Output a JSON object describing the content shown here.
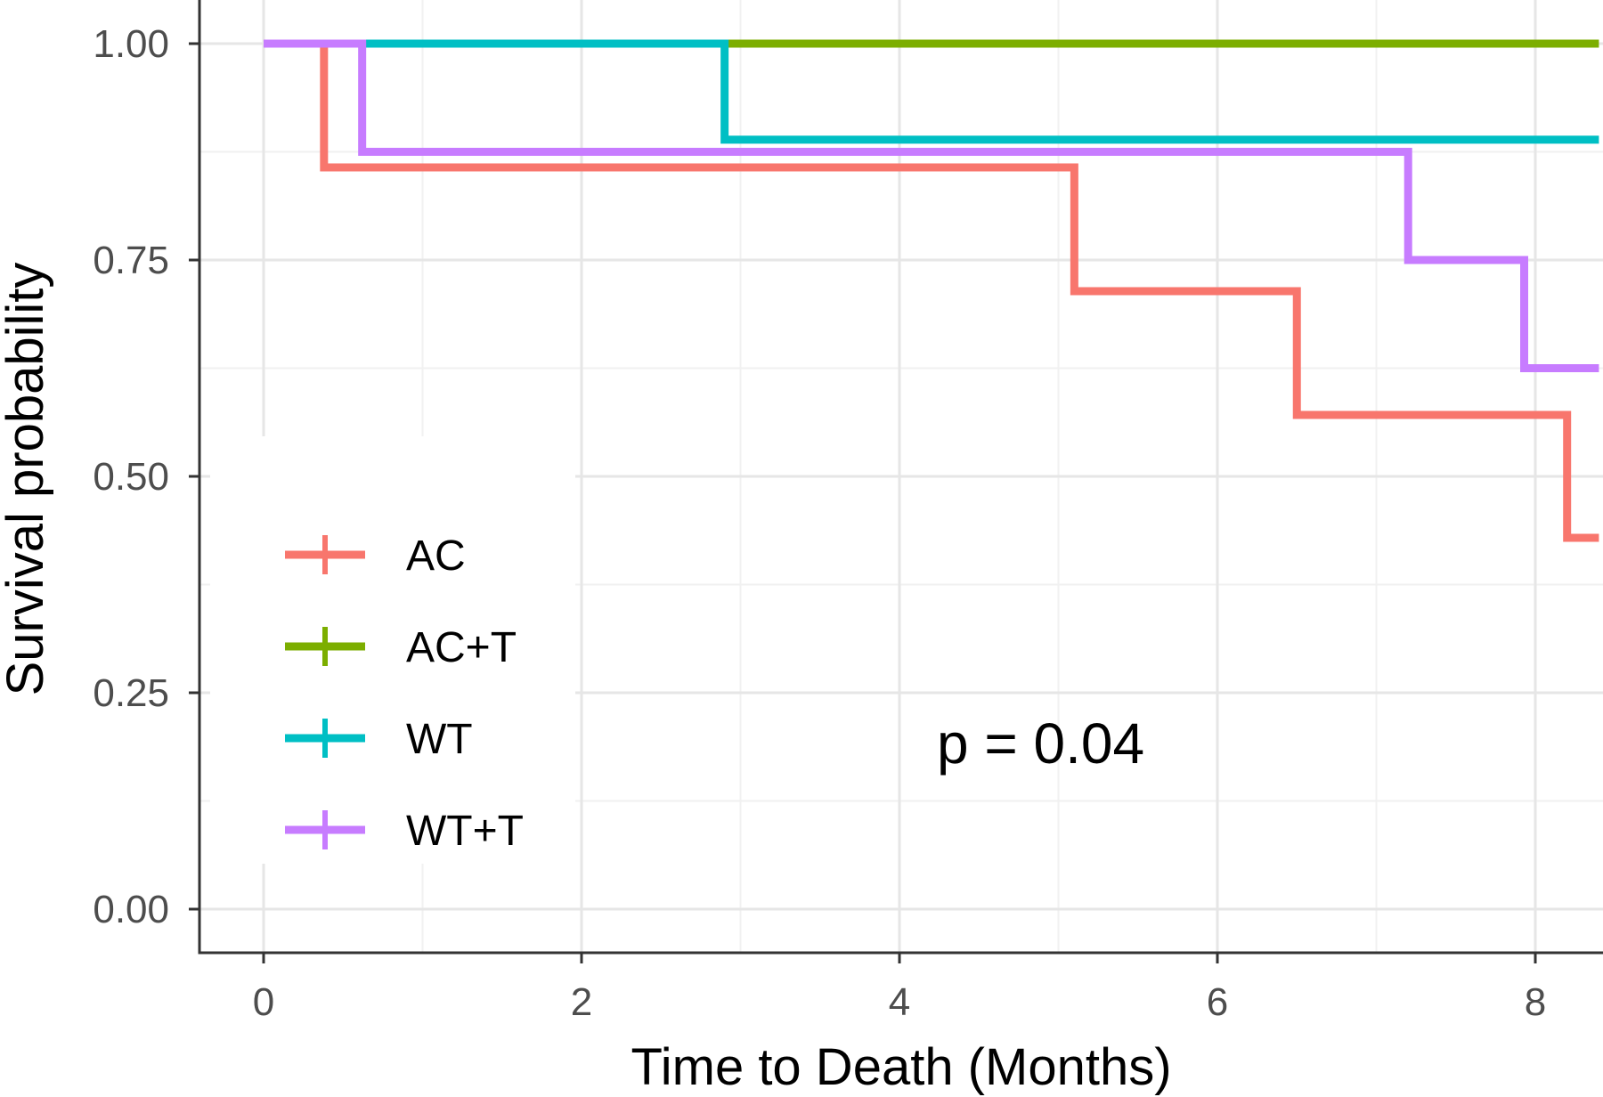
{
  "chart_data": {
    "type": "line",
    "subtype": "kaplan-meier step",
    "title": "",
    "xlabel": "Time to Death (Months)",
    "ylabel": "Survival probability",
    "xlim": [
      -0.4,
      8.4
    ],
    "ylim": [
      -0.05,
      1.05
    ],
    "x_ticks": [
      0,
      2,
      4,
      6,
      8
    ],
    "x_tick_labels": [
      "0",
      "2",
      "4",
      "6",
      "8"
    ],
    "y_ticks": [
      0,
      0.25,
      0.5,
      0.75,
      1.0
    ],
    "y_tick_labels": [
      "0.00",
      "0.25",
      "0.50",
      "0.75",
      "1.00"
    ],
    "grid": true,
    "legend_position": "bottom-left",
    "series": [
      {
        "name": "AC",
        "color": "#F8766D",
        "steps": [
          [
            0,
            1.0
          ],
          [
            0.38,
            0.857
          ],
          [
            5.1,
            0.714
          ],
          [
            6.5,
            0.571
          ],
          [
            8.2,
            0.429
          ],
          [
            8.4,
            0.429
          ]
        ]
      },
      {
        "name": "AC+T",
        "color": "#7CAE00",
        "steps": [
          [
            0,
            1.0
          ],
          [
            8.4,
            1.0
          ]
        ]
      },
      {
        "name": "WT",
        "color": "#00BFC4",
        "steps": [
          [
            0,
            1.0
          ],
          [
            2.9,
            0.889
          ],
          [
            8.4,
            0.889
          ]
        ]
      },
      {
        "name": "WT+T",
        "color": "#C77CFF",
        "steps": [
          [
            0,
            1.0
          ],
          [
            0.62,
            0.875
          ],
          [
            7.2,
            0.75
          ],
          [
            7.93,
            0.625
          ],
          [
            8.4,
            0.625
          ]
        ]
      }
    ],
    "annotations": [
      {
        "text": "p = 0.04",
        "x": 5.0,
        "y": 0.2
      }
    ]
  }
}
